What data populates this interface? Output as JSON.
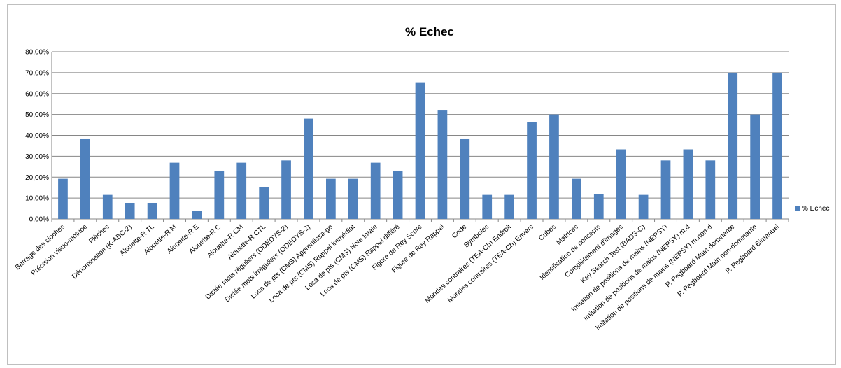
{
  "chart_data": {
    "type": "bar",
    "title": "% Echec",
    "xlabel": "",
    "ylabel": "",
    "ylim": [
      0,
      0.8
    ],
    "y_ticks": [
      "0,00%",
      "10,00%",
      "20,00%",
      "30,00%",
      "40,00%",
      "50,00%",
      "60,00%",
      "70,00%",
      "80,00%"
    ],
    "grid": true,
    "legend_position": "right",
    "bar_color": "#4f81bd",
    "categories": [
      "Barrage des cloches",
      "Précision visuo-motrice",
      "Flèches",
      "Dénomination (K-ABC-2)",
      "Alouette-R TL",
      "Alouette-R M",
      "Alouette-R E",
      "Alouette-R C",
      "Alouette-R CM",
      "Alouette-R CTL",
      "Dictée mots réguliers (ODEDYS-2)",
      "Dictée mots irréguliers (ODEDYS-2)",
      "Loca de pts (CMS) Apprentissa-ge",
      "Loca de pts (CMS) Rappel immédiat",
      "Loca de pts (CMS) Note totale",
      "Loca de pts (CMS) Rappel différé",
      "Figure de Rey Score",
      "Figure de Rey Rappel",
      "Code",
      "Symboles",
      "Mondes contraires (TEA-Ch) Endroit",
      "Mondes contraires (TEA-Ch) Envers",
      "Cubes",
      "Matrices",
      "Identification de concepts",
      "Complètement d'images",
      "Key Search Test (BADS-C)",
      "Imitation de positions de mains (NEPSY)",
      "Imitation de positions de mains (NEPSY) m.d",
      "Imitation de positions de mains (NEPSY) m.non-d",
      "P. Pegboard Main dominante",
      "P. Pegboard Main non-dominante",
      "P. Pegboard Bimanuel"
    ],
    "series": [
      {
        "name": "% Echec",
        "values": [
          0.192,
          0.385,
          0.115,
          0.077,
          0.077,
          0.269,
          0.038,
          0.231,
          0.269,
          0.154,
          0.28,
          0.48,
          0.192,
          0.192,
          0.269,
          0.231,
          0.654,
          0.522,
          0.385,
          0.115,
          0.115,
          0.462,
          0.5,
          0.192,
          0.12,
          0.333,
          0.115,
          0.28,
          0.333,
          0.28,
          0.7,
          0.5,
          0.7
        ]
      }
    ]
  }
}
